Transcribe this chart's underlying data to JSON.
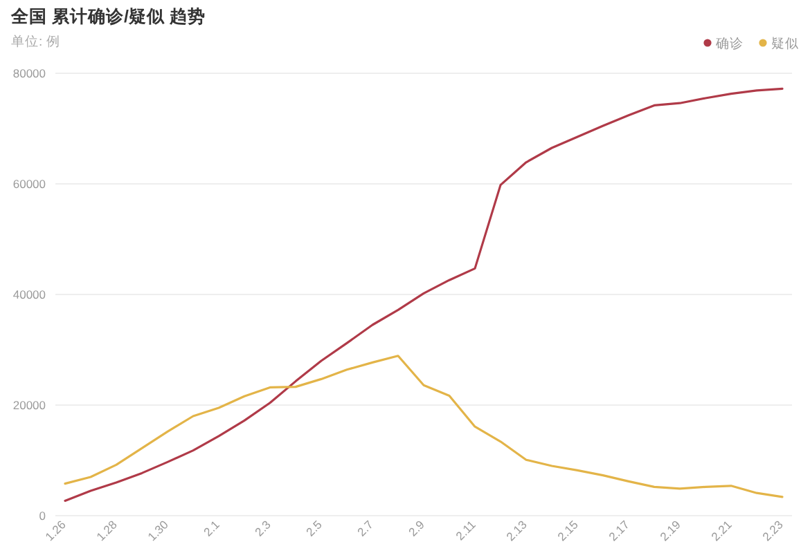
{
  "chart_data": {
    "type": "line",
    "title": "全国 累计确诊/疑似 趋势",
    "ylabel": "单位: 例",
    "categories": [
      "1.26",
      null,
      "1.28",
      null,
      "1.30",
      null,
      "2.1",
      null,
      "2.3",
      null,
      "2.5",
      null,
      "2.7",
      null,
      "2.9",
      null,
      "2.11",
      null,
      "2.13",
      null,
      "2.15",
      null,
      "2.17",
      null,
      "2.19",
      null,
      "2.21",
      null,
      "2.23"
    ],
    "series": [
      {
        "name": "确诊",
        "color": "#b03a48",
        "values": [
          2700,
          4500,
          6000,
          7700,
          9700,
          11800,
          14400,
          17200,
          20400,
          24300,
          28000,
          31200,
          34500,
          37200,
          40200,
          42600,
          44700,
          59800,
          63900,
          66500,
          68500,
          70500,
          72400,
          74200,
          74600,
          75500,
          76300,
          76900,
          77200
        ]
      },
      {
        "name": "疑似",
        "color": "#e3b448",
        "values": [
          5800,
          7000,
          9200,
          12200,
          15200,
          18000,
          19500,
          21600,
          23200,
          23300,
          24700,
          26400,
          27700,
          28900,
          23600,
          21700,
          16100,
          13400,
          10100,
          9000,
          8200,
          7300,
          6200,
          5200,
          4900,
          5200,
          5400,
          4100,
          3400
        ]
      }
    ],
    "ylim": [
      0,
      80000
    ],
    "yticks": [
      0,
      20000,
      40000,
      60000,
      80000
    ],
    "grid": "y",
    "legend": "top right"
  }
}
